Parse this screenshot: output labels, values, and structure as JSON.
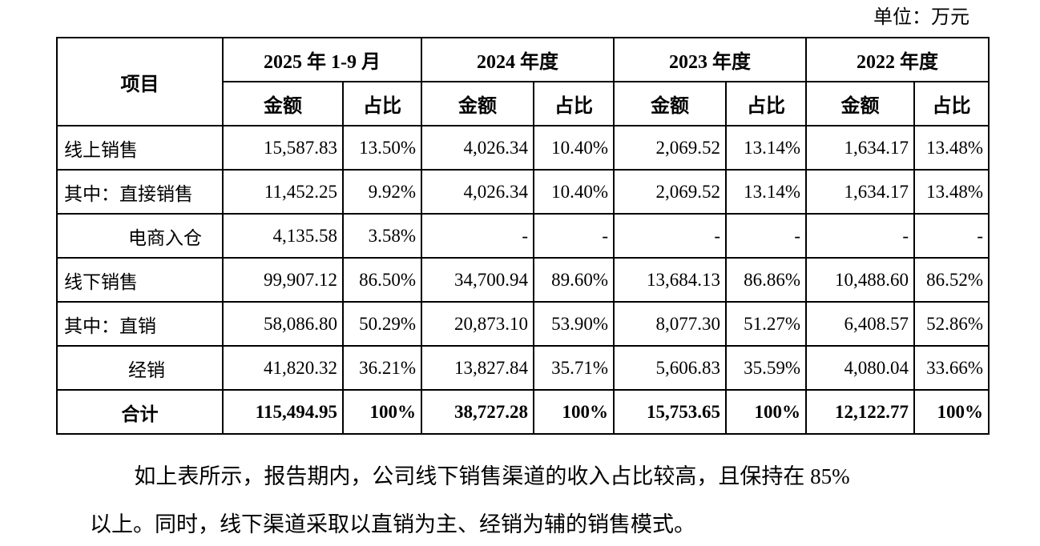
{
  "unit_label": "单位：万元",
  "table": {
    "item_header": "项目",
    "amount_label": "金额",
    "ratio_label": "占比",
    "periods": [
      "2025 年 1-9 月",
      "2024 年度",
      "2023 年度",
      "2022 年度"
    ],
    "rows": [
      {
        "label": "线上销售",
        "indent": false,
        "total": false,
        "values": [
          "15,587.83",
          "13.50%",
          "4,026.34",
          "10.40%",
          "2,069.52",
          "13.14%",
          "1,634.17",
          "13.48%"
        ]
      },
      {
        "label": "其中：直接销售",
        "indent": false,
        "total": false,
        "values": [
          "11,452.25",
          "9.92%",
          "4,026.34",
          "10.40%",
          "2,069.52",
          "13.14%",
          "1,634.17",
          "13.48%"
        ]
      },
      {
        "label": "电商入仓",
        "indent": true,
        "total": false,
        "values": [
          "4,135.58",
          "3.58%",
          "-",
          "-",
          "-",
          "-",
          "-",
          "-"
        ]
      },
      {
        "label": "线下销售",
        "indent": false,
        "total": false,
        "values": [
          "99,907.12",
          "86.50%",
          "34,700.94",
          "89.60%",
          "13,684.13",
          "86.86%",
          "10,488.60",
          "86.52%"
        ]
      },
      {
        "label": "其中：直销",
        "indent": false,
        "total": false,
        "values": [
          "58,086.80",
          "50.29%",
          "20,873.10",
          "53.90%",
          "8,077.30",
          "51.27%",
          "6,408.57",
          "52.86%"
        ]
      },
      {
        "label": "经销",
        "indent": true,
        "total": false,
        "values": [
          "41,820.32",
          "36.21%",
          "13,827.84",
          "35.71%",
          "5,606.83",
          "35.59%",
          "4,080.04",
          "33.66%"
        ]
      },
      {
        "label": "合计",
        "indent": false,
        "total": true,
        "values": [
          "115,494.95",
          "100%",
          "38,727.28",
          "100%",
          "15,753.65",
          "100%",
          "12,122.77",
          "100%"
        ]
      }
    ]
  },
  "paragraph": {
    "line1": "如上表所示，报告期内，公司线下销售渠道的收入占比较高，且保持在 85%",
    "line2": "以上。同时，线下渠道采取以直销为主、经销为辅的销售模式。"
  }
}
